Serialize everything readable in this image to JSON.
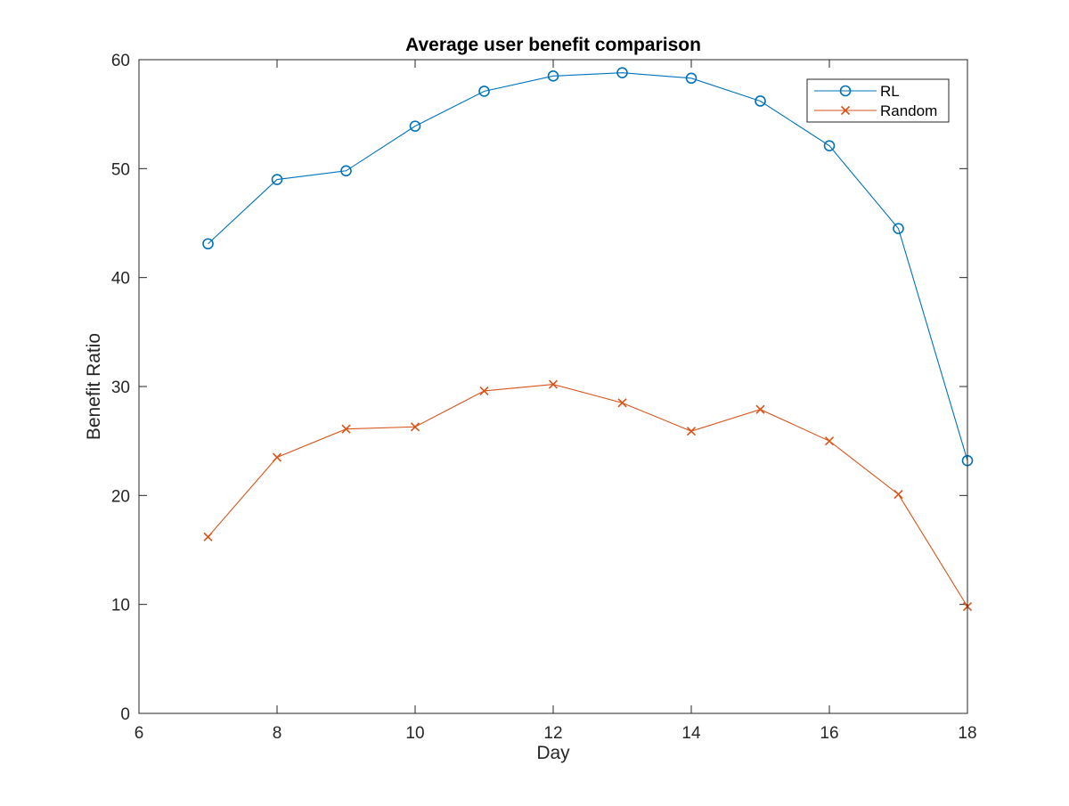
{
  "chart_data": {
    "type": "line",
    "title": "Average user benefit comparison",
    "xlabel": "Day",
    "ylabel": "Benefit Ratio",
    "xlim": [
      6,
      18
    ],
    "ylim": [
      0,
      60
    ],
    "xticks": [
      6,
      8,
      10,
      12,
      14,
      16,
      18
    ],
    "yticks": [
      0,
      10,
      20,
      30,
      40,
      50,
      60
    ],
    "x": [
      7,
      8,
      9,
      10,
      11,
      12,
      13,
      14,
      15,
      16,
      17,
      18
    ],
    "grid": false,
    "legend_position": "top-right",
    "series": [
      {
        "name": "RL",
        "marker": "circle",
        "color": "#0072BD",
        "values": [
          43.1,
          49.0,
          49.8,
          53.9,
          57.1,
          58.5,
          58.8,
          58.3,
          56.2,
          52.1,
          44.5,
          23.2
        ]
      },
      {
        "name": "Random",
        "marker": "x",
        "color": "#D95319",
        "values": [
          16.2,
          23.5,
          26.1,
          26.3,
          29.6,
          30.2,
          28.5,
          25.9,
          27.9,
          25.0,
          20.1,
          9.8
        ]
      }
    ]
  }
}
